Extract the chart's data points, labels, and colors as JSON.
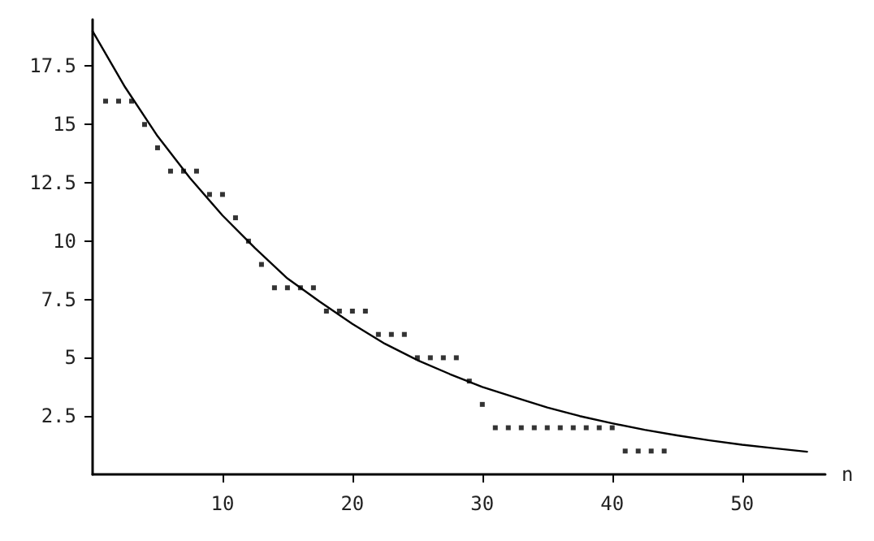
{
  "chart_data": {
    "type": "scatter",
    "xlabel": "n",
    "marker": "square",
    "xlim": [
      0,
      56.4
    ],
    "ylim": [
      0,
      19.5
    ],
    "xticks": [
      10,
      20,
      30,
      40,
      50
    ],
    "yticks": [
      2.5,
      5,
      7.5,
      10,
      12.5,
      15,
      17.5
    ],
    "series": [
      {
        "color": "#000000",
        "x": [
          1,
          2,
          3,
          4,
          5,
          6,
          7,
          8,
          9,
          10,
          11,
          12,
          13,
          14,
          15,
          16,
          17,
          18,
          19,
          20,
          21,
          22,
          23,
          24,
          25,
          26,
          27,
          28,
          29,
          30,
          31,
          32,
          33,
          34,
          35,
          36,
          37,
          38,
          39,
          40,
          41,
          42,
          43,
          44
        ],
        "values": [
          16,
          16,
          16,
          15,
          14,
          13,
          13,
          13,
          12,
          12,
          11,
          10,
          9,
          8,
          8,
          8,
          8,
          7,
          7,
          7,
          7,
          6,
          6,
          6,
          5,
          5,
          5,
          5,
          4,
          3,
          2,
          2,
          2,
          2,
          2,
          2,
          2,
          2,
          2,
          2,
          1,
          1,
          1,
          1
        ]
      },
      {
        "type": "line",
        "marker": "none",
        "color": "#000000",
        "x": [
          0,
          2.5,
          5,
          7.5,
          10,
          12.5,
          15,
          17.5,
          20,
          22.5,
          25,
          27.5,
          30,
          32.5,
          35,
          37.5,
          40,
          42.5,
          45,
          47.5,
          50,
          52.5,
          55
        ],
        "values": [
          19,
          16.6,
          14.5,
          12.7,
          11.1,
          9.7,
          8.4,
          7.4,
          6.45,
          5.6,
          4.9,
          4.3,
          3.75,
          3.3,
          2.87,
          2.5,
          2.19,
          1.91,
          1.67,
          1.46,
          1.27,
          1.12,
          0.97
        ]
      }
    ]
  }
}
